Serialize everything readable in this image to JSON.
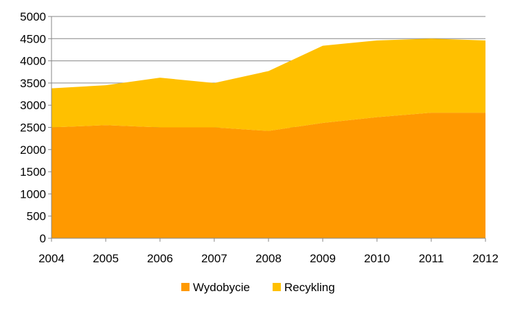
{
  "chart_data": {
    "type": "area",
    "stacked": true,
    "x": [
      "2004",
      "2005",
      "2006",
      "2007",
      "2008",
      "2009",
      "2010",
      "2011",
      "2012"
    ],
    "series": [
      {
        "name": "Wydobycie",
        "color": "#FF9900",
        "values": [
          2500,
          2550,
          2500,
          2500,
          2420,
          2600,
          2730,
          2830,
          2830
        ]
      },
      {
        "name": "Recykling",
        "color": "#FFC000",
        "values": [
          880,
          900,
          1120,
          1000,
          1350,
          1740,
          1730,
          1670,
          1630
        ]
      }
    ],
    "ylim": [
      0,
      5000
    ],
    "yticks": [
      "0",
      "500",
      "1000",
      "1500",
      "2000",
      "2500",
      "3000",
      "3500",
      "4000",
      "4500",
      "5000"
    ],
    "grid": true,
    "legend_position": "bottom",
    "title": "",
    "xlabel": "",
    "ylabel": ""
  }
}
